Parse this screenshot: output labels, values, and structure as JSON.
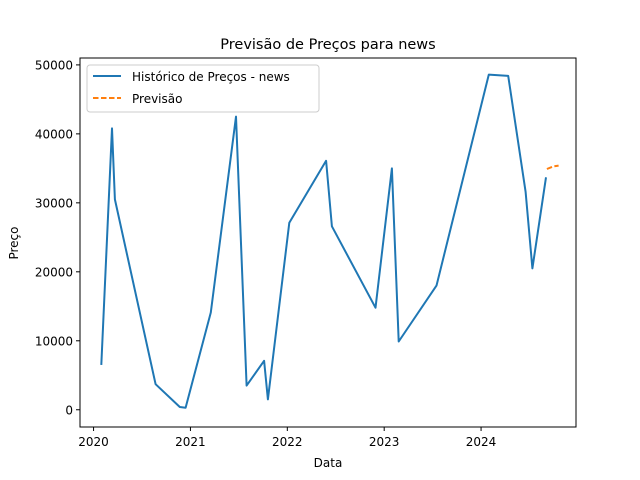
{
  "chart_data": {
    "type": "line",
    "title": "Previsão de Preços para news",
    "xlabel": "Data",
    "ylabel": "Preço",
    "xlim": [
      2019.86,
      2024.98
    ],
    "ylim": [
      -2500,
      51000
    ],
    "x_ticks": [
      2020,
      2021,
      2022,
      2023,
      2024
    ],
    "x_tick_labels": [
      "2020",
      "2021",
      "2022",
      "2023",
      "2024"
    ],
    "y_ticks": [
      0,
      10000,
      20000,
      30000,
      40000,
      50000
    ],
    "y_tick_labels": [
      "0",
      "10000",
      "20000",
      "30000",
      "40000",
      "50000"
    ],
    "legend_position": "upper-left",
    "grid": false,
    "series": [
      {
        "name": "Histórico de Preços - news",
        "color": "#1f77b4",
        "dash": "solid",
        "x": [
          2020.08,
          2020.19,
          2020.22,
          2020.64,
          2020.89,
          2020.95,
          2021.21,
          2021.47,
          2021.58,
          2021.76,
          2021.8,
          2022.02,
          2022.4,
          2022.46,
          2022.91,
          2023.08,
          2023.15,
          2023.54,
          2024.08,
          2024.28,
          2024.46,
          2024.53,
          2024.67
        ],
        "y": [
          6500,
          40800,
          30500,
          3700,
          400,
          300,
          14100,
          42500,
          3500,
          7100,
          1500,
          27100,
          36100,
          26600,
          14800,
          35000,
          9900,
          18000,
          48600,
          48400,
          31600,
          20500,
          33700
        ]
      },
      {
        "name": "Previsão",
        "color": "#ff7f0e",
        "dash": "dashed",
        "x": [
          2024.68,
          2024.75,
          2024.8
        ],
        "y": [
          34900,
          35300,
          35400
        ]
      }
    ]
  }
}
